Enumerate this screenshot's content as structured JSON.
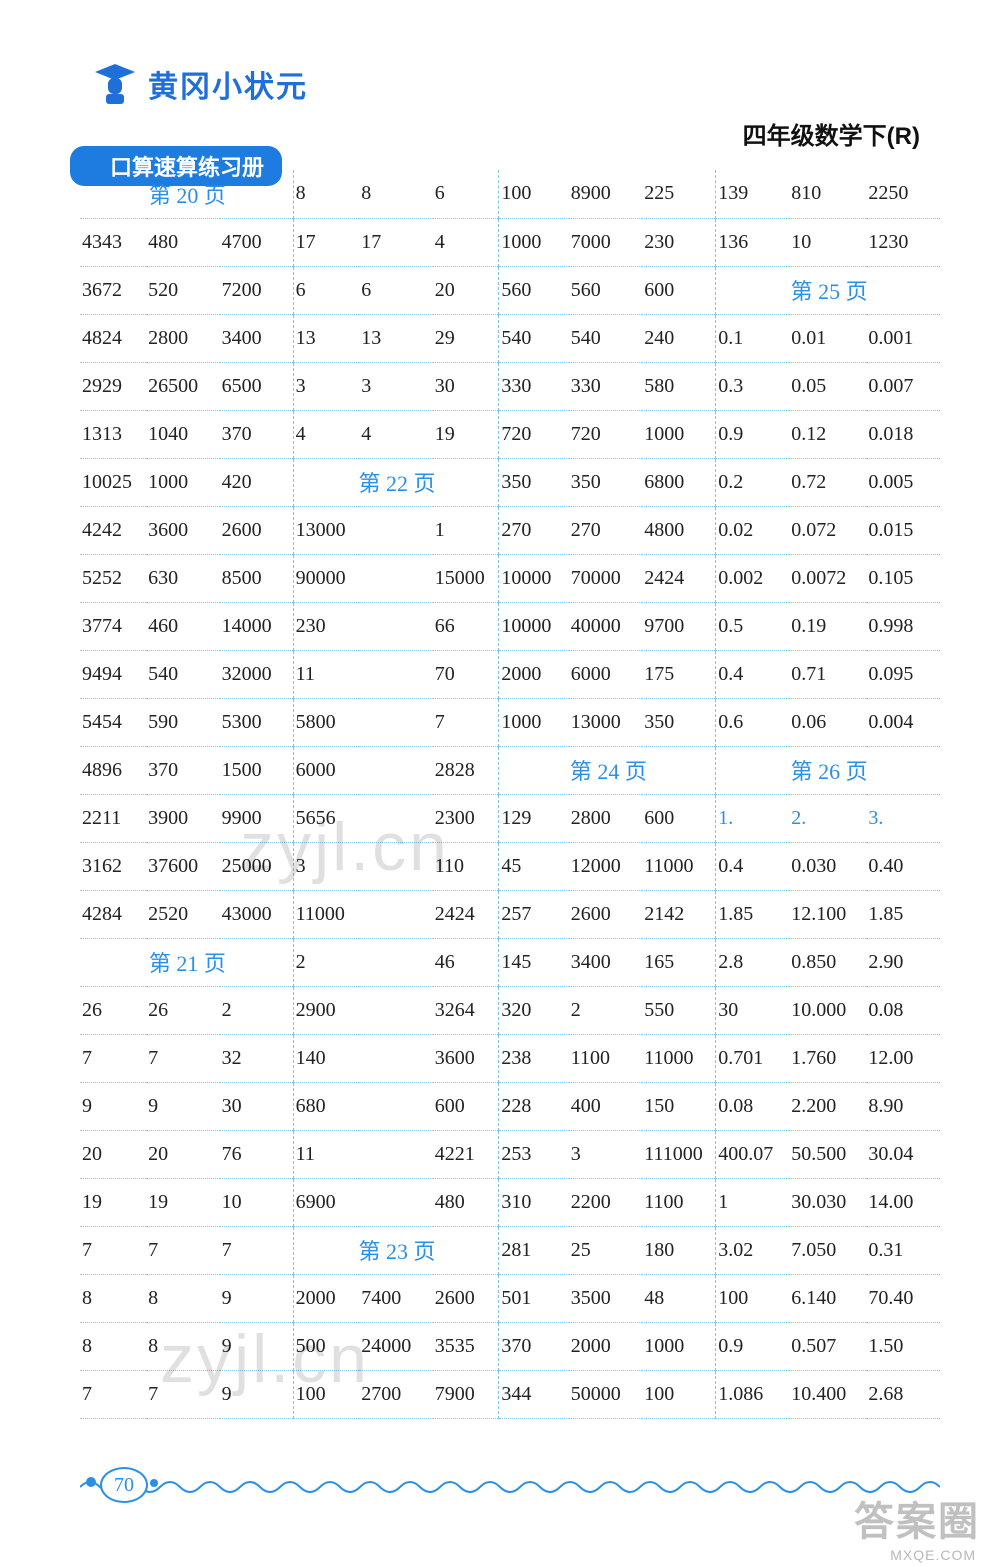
{
  "header": {
    "brand": "黄冈小状元",
    "subtitle": "口算速算练习册",
    "grade": "四年级数学下(R)"
  },
  "col_widths_pct": [
    7.4,
    7.4,
    7.4,
    7.4,
    7.4,
    7.4,
    7.4,
    7.4,
    7.4,
    7.4,
    7.4,
    7.4
  ],
  "colors": {
    "link_blue": "#2b8fe6",
    "header_blue": "#1e7be0",
    "brand_blue": "#1e6fd9",
    "text": "#222222",
    "dotted": "#7fc6e6",
    "bg": "#ffffff"
  },
  "page_headers": {
    "p20": "第 20 页",
    "p21": "第 21 页",
    "p22": "第 22 页",
    "p23": "第 23 页",
    "p24": "第 24 页",
    "p25": "第 25 页",
    "p26": "第 26 页",
    "n1": "1.",
    "n2": "2.",
    "n3": "3."
  },
  "rows": [
    [
      "",
      "",
      "",
      "8",
      "8",
      "6",
      "100",
      "8900",
      "225",
      "139",
      "810",
      "2250"
    ],
    [
      "4343",
      "480",
      "4700",
      "17",
      "17",
      "4",
      "1000",
      "7000",
      "230",
      "136",
      "10",
      "1230"
    ],
    [
      "3672",
      "520",
      "7200",
      "6",
      "6",
      "20",
      "560",
      "560",
      "600",
      "",
      "",
      ""
    ],
    [
      "4824",
      "2800",
      "3400",
      "13",
      "13",
      "29",
      "540",
      "540",
      "240",
      "0.1",
      "0.01",
      "0.001"
    ],
    [
      "2929",
      "26500",
      "6500",
      "3",
      "3",
      "30",
      "330",
      "330",
      "580",
      "0.3",
      "0.05",
      "0.007"
    ],
    [
      "1313",
      "1040",
      "370",
      "4",
      "4",
      "19",
      "720",
      "720",
      "1000",
      "0.9",
      "0.12",
      "0.018"
    ],
    [
      "10025",
      "1000",
      "420",
      "",
      "",
      "",
      "350",
      "350",
      "6800",
      "0.2",
      "0.72",
      "0.005"
    ],
    [
      "4242",
      "3600",
      "2600",
      "13000",
      "",
      "1",
      "270",
      "270",
      "4800",
      "0.02",
      "0.072",
      "0.015"
    ],
    [
      "5252",
      "630",
      "8500",
      "90000",
      "",
      "15000",
      "10000",
      "70000",
      "2424",
      "0.002",
      "0.0072",
      "0.105"
    ],
    [
      "3774",
      "460",
      "14000",
      "230",
      "",
      "66",
      "10000",
      "40000",
      "9700",
      "0.5",
      "0.19",
      "0.998"
    ],
    [
      "9494",
      "540",
      "32000",
      "11",
      "",
      "70",
      "2000",
      "6000",
      "175",
      "0.4",
      "0.71",
      "0.095"
    ],
    [
      "5454",
      "590",
      "5300",
      "5800",
      "",
      "7",
      "1000",
      "13000",
      "350",
      "0.6",
      "0.06",
      "0.004"
    ],
    [
      "4896",
      "370",
      "1500",
      "6000",
      "",
      "2828",
      "",
      "",
      "",
      "",
      "",
      ""
    ],
    [
      "2211",
      "3900",
      "9900",
      "5656",
      "",
      "2300",
      "129",
      "2800",
      "600",
      "",
      "",
      ""
    ],
    [
      "3162",
      "37600",
      "25000",
      "3",
      "",
      "110",
      "45",
      "12000",
      "11000",
      "0.4",
      "0.030",
      "0.40"
    ],
    [
      "4284",
      "2520",
      "43000",
      "11000",
      "",
      "2424",
      "257",
      "2600",
      "2142",
      "1.85",
      "12.100",
      "1.85"
    ],
    [
      "",
      "",
      "",
      "2",
      "",
      "46",
      "145",
      "3400",
      "165",
      "2.8",
      "0.850",
      "2.90"
    ],
    [
      "26",
      "26",
      "2",
      "2900",
      "",
      "3264",
      "320",
      "2",
      "550",
      "30",
      "10.000",
      "0.08"
    ],
    [
      "7",
      "7",
      "32",
      "140",
      "",
      "3600",
      "238",
      "1100",
      "11000",
      "0.701",
      "1.760",
      "12.00"
    ],
    [
      "9",
      "9",
      "30",
      "680",
      "",
      "600",
      "228",
      "400",
      "150",
      "0.08",
      "2.200",
      "8.90"
    ],
    [
      "20",
      "20",
      "76",
      "11",
      "",
      "4221",
      "253",
      "3",
      "111000",
      "400.07",
      "50.500",
      "30.04"
    ],
    [
      "19",
      "19",
      "10",
      "6900",
      "",
      "480",
      "310",
      "2200",
      "1100",
      "1",
      "30.030",
      "14.00"
    ],
    [
      "7",
      "7",
      "7",
      "",
      "",
      "",
      "281",
      "25",
      "180",
      "3.02",
      "7.050",
      "0.31"
    ],
    [
      "8",
      "8",
      "9",
      "2000",
      "7400",
      "2600",
      "501",
      "3500",
      "48",
      "100",
      "6.140",
      "70.40"
    ],
    [
      "8",
      "8",
      "9",
      "500",
      "24000",
      "3535",
      "370",
      "2000",
      "1000",
      "0.9",
      "0.507",
      "1.50"
    ],
    [
      "7",
      "7",
      "9",
      "100",
      "2700",
      "7900",
      "344",
      "50000",
      "100",
      "1.086",
      "10.400",
      "2.68"
    ]
  ],
  "page_number": "70",
  "watermarks": {
    "wm": "zyjl.cn",
    "stamp": "答案圈",
    "stamp2": "MXQE.COM"
  }
}
